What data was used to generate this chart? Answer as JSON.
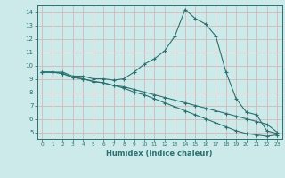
{
  "xlabel": "Humidex (Indice chaleur)",
  "background_color": "#cdeaea",
  "grid_color": "#d4b8b8",
  "line_color": "#2a7070",
  "xlim": [
    -0.5,
    23.5
  ],
  "ylim": [
    4.5,
    14.5
  ],
  "xticks": [
    0,
    1,
    2,
    3,
    4,
    5,
    6,
    7,
    8,
    9,
    10,
    11,
    12,
    13,
    14,
    15,
    16,
    17,
    18,
    19,
    20,
    21,
    22,
    23
  ],
  "yticks": [
    5,
    6,
    7,
    8,
    9,
    10,
    11,
    12,
    13,
    14
  ],
  "series1_x": [
    0,
    1,
    2,
    3,
    4,
    5,
    6,
    7,
    8,
    9,
    10,
    11,
    12,
    13,
    14,
    15,
    16,
    17,
    18,
    19,
    20,
    21,
    22,
    23
  ],
  "series1_y": [
    9.5,
    9.5,
    9.5,
    9.2,
    9.2,
    9.0,
    9.0,
    8.9,
    9.0,
    9.5,
    10.1,
    10.5,
    11.1,
    12.2,
    14.2,
    13.5,
    13.1,
    12.2,
    9.5,
    7.5,
    6.5,
    6.3,
    5.1,
    4.9
  ],
  "series2_x": [
    0,
    1,
    2,
    3,
    4,
    5,
    6,
    7,
    8,
    9,
    10,
    11,
    12,
    13,
    14,
    15,
    16,
    17,
    18,
    19,
    20,
    21,
    22,
    23
  ],
  "series2_y": [
    9.5,
    9.5,
    9.4,
    9.1,
    9.0,
    8.8,
    8.7,
    8.5,
    8.4,
    8.2,
    8.0,
    7.8,
    7.6,
    7.4,
    7.2,
    7.0,
    6.8,
    6.6,
    6.4,
    6.2,
    6.0,
    5.8,
    5.6,
    5.0
  ],
  "series3_x": [
    0,
    1,
    2,
    3,
    4,
    5,
    6,
    7,
    8,
    9,
    10,
    11,
    12,
    13,
    14,
    15,
    16,
    17,
    18,
    19,
    20,
    21,
    22,
    23
  ],
  "series3_y": [
    9.5,
    9.5,
    9.4,
    9.1,
    9.0,
    8.8,
    8.7,
    8.5,
    8.3,
    8.0,
    7.8,
    7.5,
    7.2,
    6.9,
    6.6,
    6.3,
    6.0,
    5.7,
    5.4,
    5.1,
    4.9,
    4.8,
    4.7,
    4.8
  ]
}
